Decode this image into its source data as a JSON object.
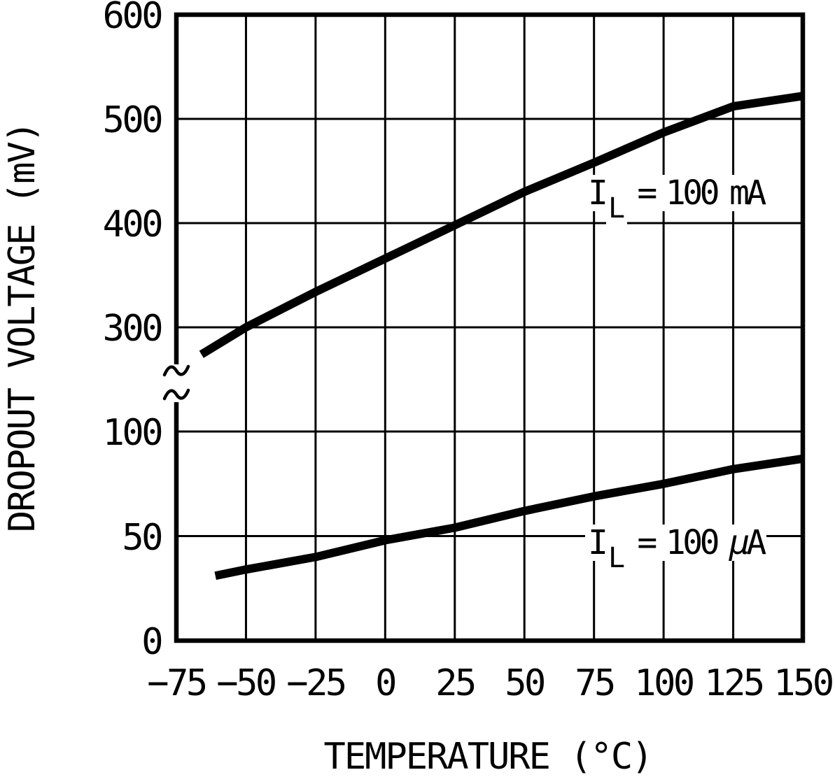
{
  "chart_data": {
    "type": "line",
    "title": "",
    "xlabel": "TEMPERATURE (°C)",
    "ylabel": "DROPOUT VOLTAGE (mV)",
    "grid": "on",
    "line_color": "#000000",
    "background": "#ffffff",
    "x_axis": {
      "title": "TEMPERATURE (°C)",
      "min": -75,
      "max": 150,
      "tick_step": 25,
      "ticks": [
        {
          "label": "−75",
          "value": -75
        },
        {
          "label": "−50",
          "value": -50
        },
        {
          "label": "−25",
          "value": -25
        },
        {
          "label": "0",
          "value": 0
        },
        {
          "label": "25",
          "value": 25
        },
        {
          "label": "50",
          "value": 50
        },
        {
          "label": "75",
          "value": 75
        },
        {
          "label": "100",
          "value": 100
        },
        {
          "label": "125",
          "value": 125
        },
        {
          "label": "150",
          "value": 150
        }
      ]
    },
    "y_axis": {
      "title": "DROPOUT VOLTAGE (mV)",
      "broken_axis": true,
      "break_between": [
        100,
        300
      ],
      "lower_segment_range": [
        0,
        100
      ],
      "upper_segment_range": [
        300,
        600
      ],
      "ticks": [
        {
          "label": "600",
          "value": 600
        },
        {
          "label": "500",
          "value": 500
        },
        {
          "label": "400",
          "value": 400
        },
        {
          "label": "300",
          "value": 300
        },
        {
          "label": "100",
          "value": 100
        },
        {
          "label": "50",
          "value": 50
        },
        {
          "label": "0",
          "value": 0
        }
      ]
    },
    "series": [
      {
        "name": "IL = 100 mA",
        "scale": "upper",
        "label": {
          "sym": "I",
          "sub": "L",
          "eq": "=",
          "value": "100",
          "unit": "mA"
        },
        "points": [
          [
            -66,
            274
          ],
          [
            -50,
            300
          ],
          [
            -25,
            334
          ],
          [
            0,
            366
          ],
          [
            25,
            398
          ],
          [
            50,
            430
          ],
          [
            75,
            458
          ],
          [
            100,
            487
          ],
          [
            125,
            512
          ],
          [
            150,
            522
          ]
        ]
      },
      {
        "name": "IL = 100 µA",
        "scale": "lower",
        "label": {
          "sym": "I",
          "sub": "L",
          "eq": "=",
          "value": "100",
          "unit": "μA"
        },
        "points": [
          [
            -61,
            31
          ],
          [
            -50,
            34
          ],
          [
            -25,
            40
          ],
          [
            0,
            48
          ],
          [
            25,
            54
          ],
          [
            50,
            62
          ],
          [
            75,
            69
          ],
          [
            100,
            75
          ],
          [
            125,
            82
          ],
          [
            150,
            87
          ]
        ]
      }
    ]
  }
}
